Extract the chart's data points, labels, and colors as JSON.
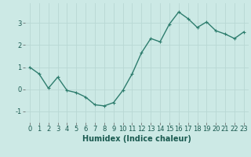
{
  "x": [
    0,
    1,
    2,
    3,
    4,
    5,
    6,
    7,
    8,
    9,
    10,
    11,
    12,
    13,
    14,
    15,
    16,
    17,
    18,
    19,
    20,
    21,
    22,
    23
  ],
  "y": [
    1.0,
    0.7,
    0.05,
    0.55,
    -0.05,
    -0.15,
    -0.35,
    -0.7,
    -0.75,
    -0.6,
    -0.05,
    0.7,
    1.65,
    2.3,
    2.15,
    2.95,
    3.5,
    3.2,
    2.8,
    3.05,
    2.65,
    2.5,
    2.3,
    2.6
  ],
  "line_color": "#2e7d6e",
  "marker": "+",
  "marker_size": 3,
  "linewidth": 1.0,
  "bg_color": "#cce9e5",
  "grid_color": "#b8d8d4",
  "xlabel": "Humidex (Indice chaleur)",
  "xlabel_fontsize": 7,
  "tick_fontsize": 6,
  "ylim": [
    -1.5,
    3.9
  ],
  "xlim": [
    -0.5,
    23.5
  ],
  "yticks": [
    -1,
    0,
    1,
    2,
    3
  ],
  "xticks": [
    0,
    1,
    2,
    3,
    4,
    5,
    6,
    7,
    8,
    9,
    10,
    11,
    12,
    13,
    14,
    15,
    16,
    17,
    18,
    19,
    20,
    21,
    22,
    23
  ]
}
